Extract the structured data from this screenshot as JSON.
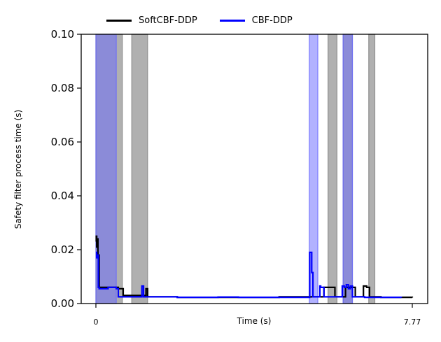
{
  "chart_data": {
    "type": "line",
    "title": "",
    "xlabel": "Time (s)",
    "ylabel": "Safety filter process time (s)",
    "xlim": [
      0,
      7.77
    ],
    "ylim": [
      0,
      0.1
    ],
    "xticks": [
      "0",
      "7.77"
    ],
    "yticks": [
      "0.00",
      "0.02",
      "0.04",
      "0.06",
      "0.08",
      "0.10"
    ],
    "legend_position": "top, above plot",
    "series": [
      {
        "name": "SoftCBF-DDP",
        "color": "#000000",
        "x": [
          0.0,
          0.01,
          0.02,
          0.04,
          0.05,
          0.06,
          0.08,
          0.1,
          0.12,
          0.15,
          0.2,
          0.3,
          0.5,
          0.52,
          0.55,
          0.65,
          0.67,
          0.7,
          0.9,
          1.2,
          1.23,
          1.27,
          1.3,
          2.0,
          3.0,
          3.5,
          4.0,
          4.5,
          5.2,
          5.5,
          5.6,
          5.63,
          5.85,
          5.87,
          5.9,
          6.1,
          6.13,
          6.35,
          6.37,
          6.4,
          6.55,
          6.57,
          6.65,
          6.7,
          6.72,
          7.0,
          7.77
        ],
        "y": [
          0.023,
          0.025,
          0.021,
          0.024,
          0.018,
          0.018,
          0.006,
          0.006,
          0.006,
          0.006,
          0.006,
          0.006,
          0.006,
          0.006,
          0.0055,
          0.0055,
          0.003,
          0.003,
          0.003,
          0.0025,
          0.0055,
          0.0025,
          0.0025,
          0.0023,
          0.0023,
          0.0023,
          0.0023,
          0.0025,
          0.0025,
          0.0025,
          0.006,
          0.006,
          0.006,
          0.0025,
          0.0025,
          0.0025,
          0.006,
          0.006,
          0.0025,
          0.0025,
          0.0025,
          0.0065,
          0.006,
          0.006,
          0.0025,
          0.0023,
          0.0022
        ]
      },
      {
        "name": "CBF-DDP",
        "color": "#0000ff",
        "x": [
          0.0,
          0.02,
          0.04,
          0.06,
          0.08,
          0.1,
          0.15,
          0.2,
          0.3,
          0.4,
          0.45,
          0.5,
          0.55,
          0.6,
          1.0,
          1.1,
          1.13,
          1.17,
          1.2,
          1.5,
          2.0,
          2.5,
          3.0,
          3.5,
          4.5,
          5.2,
          5.25,
          5.3,
          5.33,
          5.36,
          5.5,
          5.52,
          5.6,
          5.9,
          6.0,
          6.05,
          6.1,
          6.15,
          6.2,
          6.25,
          6.3,
          6.35,
          6.4,
          6.6,
          7.0,
          7.5
        ],
        "y": [
          0.019,
          0.017,
          0.018,
          0.006,
          0.0055,
          0.0055,
          0.0055,
          0.0055,
          0.006,
          0.006,
          0.006,
          0.0055,
          0.0025,
          0.0025,
          0.0025,
          0.0025,
          0.0065,
          0.0025,
          0.0025,
          0.0025,
          0.0023,
          0.0023,
          0.0024,
          0.0023,
          0.0023,
          0.0023,
          0.019,
          0.0115,
          0.0025,
          0.0025,
          0.0065,
          0.006,
          0.0025,
          0.0025,
          0.0025,
          0.0065,
          0.006,
          0.007,
          0.0055,
          0.0065,
          0.0025,
          0.0025,
          0.0025,
          0.0023,
          0.0023,
          0.0022
        ]
      }
    ],
    "shaded_intervals": [
      {
        "series": "SoftCBF-DDP",
        "color": "#808080",
        "ranges": [
          [
            0.0,
            0.65
          ],
          [
            0.88,
            1.27
          ],
          [
            5.7,
            5.92
          ],
          [
            6.07,
            6.3
          ],
          [
            6.7,
            6.85
          ]
        ]
      },
      {
        "series": "CBF-DDP",
        "color": "#6666ff",
        "ranges": [
          [
            0.0,
            0.5
          ],
          [
            5.24,
            5.45
          ],
          [
            6.07,
            6.3
          ]
        ]
      }
    ]
  }
}
